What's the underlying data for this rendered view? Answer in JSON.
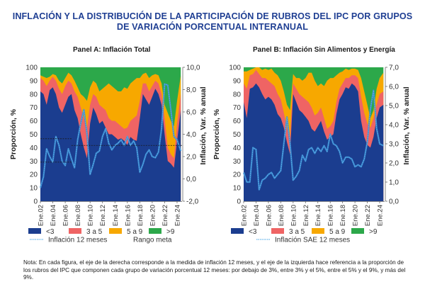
{
  "title_line1": "INFLACIÓN Y LA DISTRIBUCIÓN DE LA PARTICIPACIÓN DE RUBROS DEL IPC POR GRUPOS",
  "title_line2": "DE VARIACIÓN PORCENTUAL INTERANUAL",
  "note": "Nota: En cada figura, el eje de la derecha corresponde a la medida de inflación 12 meses, y el eje de la izquierda hace referencia a la proporción de los rubros del IPC que componen cada grupo de variación porcentual 12 meses: por debajo de 3%, entre 3% y el 5%, entre el 5% y el 9%, y más del 9%.",
  "colors": {
    "lt3": "#1b3d8f",
    "3a5": "#ef6464",
    "5a9": "#f7a800",
    "gt9": "#2ca84a",
    "line": "#3a8fd6",
    "target": "#1a1a1a"
  },
  "chart_data": [
    {
      "type": "area",
      "title": "Panel A:  Inflación Total",
      "ylabel": "Proporción, %",
      "y2label": "Inflación, Var. % anual",
      "ylim": [
        0,
        100
      ],
      "y2lim": [
        -2,
        10
      ],
      "yticks": [
        "0",
        "10",
        "20",
        "30",
        "40",
        "50",
        "60",
        "70",
        "80",
        "90",
        "100"
      ],
      "y2ticks": [
        "-2,0",
        "0,0",
        "2,0",
        "4,0",
        "6,0",
        "8,0",
        "10,0"
      ],
      "xticks": [
        "Ene.02",
        "Ene.04",
        "Ene.06",
        "Ene.08",
        "Ene.10",
        "Ene.12",
        "Ene.14",
        "Ene.16",
        "Ene.18",
        "Ene.20",
        "Ene.22",
        "Ene.24"
      ],
      "xlim": [
        2002.0,
        2024.8
      ],
      "x": [
        2002.0,
        2002.5,
        2003.0,
        2003.5,
        2004.0,
        2004.5,
        2005.0,
        2005.5,
        2006.0,
        2006.5,
        2007.0,
        2007.5,
        2008.0,
        2008.5,
        2009.0,
        2009.5,
        2010.0,
        2010.5,
        2011.0,
        2011.5,
        2012.0,
        2012.5,
        2013.0,
        2013.5,
        2014.0,
        2014.5,
        2015.0,
        2015.5,
        2016.0,
        2016.5,
        2017.0,
        2017.5,
        2018.0,
        2018.5,
        2019.0,
        2019.5,
        2020.0,
        2020.5,
        2021.0,
        2021.5,
        2022.0,
        2022.5,
        2023.0,
        2023.5,
        2024.0,
        2024.6
      ],
      "series": [
        {
          "name": "<3",
          "cumulative_top": [
            82,
            80,
            72,
            83,
            85,
            80,
            70,
            66,
            72,
            78,
            80,
            68,
            62,
            50,
            40,
            32,
            58,
            70,
            65,
            58,
            60,
            55,
            50,
            50,
            48,
            46,
            47,
            45,
            42,
            48,
            46,
            45,
            62,
            80,
            76,
            72,
            78,
            84,
            80,
            72,
            50,
            30,
            28,
            25,
            45,
            68
          ]
        },
        {
          "name": "3 a 5",
          "cumulative_top": [
            92,
            90,
            86,
            90,
            93,
            90,
            84,
            80,
            86,
            90,
            88,
            82,
            78,
            70,
            62,
            55,
            72,
            80,
            78,
            72,
            70,
            68,
            62,
            60,
            60,
            58,
            56,
            54,
            55,
            60,
            62,
            64,
            75,
            88,
            88,
            82,
            86,
            90,
            88,
            80,
            62,
            40,
            35,
            32,
            58,
            80
          ]
        },
        {
          "name": "5 a 9",
          "cumulative_top": [
            94,
            93,
            92,
            93,
            95,
            94,
            90,
            88,
            92,
            96,
            94,
            90,
            85,
            80,
            78,
            75,
            85,
            90,
            88,
            82,
            84,
            86,
            88,
            86,
            84,
            82,
            82,
            85,
            84,
            88,
            90,
            92,
            92,
            95,
            96,
            92,
            94,
            95,
            94,
            88,
            72,
            66,
            60,
            56,
            75,
            94
          ]
        },
        {
          "name": ">9",
          "cumulative_top": [
            100,
            100,
            100,
            100,
            100,
            100,
            100,
            100,
            100,
            100,
            100,
            100,
            100,
            100,
            100,
            100,
            100,
            100,
            100,
            100,
            100,
            100,
            100,
            100,
            100,
            100,
            100,
            100,
            100,
            100,
            100,
            100,
            100,
            100,
            100,
            100,
            100,
            100,
            100,
            100,
            100,
            100,
            100,
            100,
            100,
            100
          ]
        }
      ],
      "line": {
        "name": "Inflación 12 meses",
        "x": [
          2002.0,
          2002.5,
          2003.0,
          2003.5,
          2004.0,
          2004.5,
          2005.0,
          2005.5,
          2006.0,
          2006.5,
          2007.0,
          2007.5,
          2008.0,
          2008.5,
          2009.0,
          2009.5,
          2010.0,
          2010.5,
          2011.0,
          2011.5,
          2012.0,
          2012.5,
          2013.0,
          2013.5,
          2014.0,
          2014.5,
          2015.0,
          2015.5,
          2016.0,
          2016.5,
          2017.0,
          2017.5,
          2018.0,
          2018.5,
          2019.0,
          2019.5,
          2020.0,
          2020.5,
          2021.0,
          2021.5,
          2022.0,
          2022.5,
          2023.0,
          2023.5,
          2024.0,
          2024.6
        ],
        "values": [
          -0.8,
          0.2,
          2.7,
          2.0,
          1.5,
          3.8,
          3.0,
          1.6,
          1.2,
          2.7,
          1.8,
          1.0,
          3.5,
          5.0,
          6.2,
          4.0,
          0.4,
          1.3,
          2.3,
          2.5,
          3.8,
          4.5,
          3.2,
          2.6,
          3.0,
          3.2,
          3.5,
          3.0,
          3.8,
          3.0,
          3.4,
          2.8,
          0.6,
          1.3,
          2.2,
          2.6,
          2.0,
          1.9,
          2.4,
          4.5,
          8.5,
          8.4,
          6.2,
          3.8,
          3.5,
          2.5
        ]
      },
      "target_range": [
        {
          "from": 2002.0,
          "to": 2007.0,
          "lower": 1.5,
          "upper": 3.6
        },
        {
          "from": 2007.0,
          "to": 2024.8,
          "value": 3.0
        }
      ],
      "legend": [
        {
          "label": "<3",
          "type": "box"
        },
        {
          "label": "3 a 5",
          "type": "box"
        },
        {
          "label": "5 a 9",
          "type": "box"
        },
        {
          "label": ">9",
          "type": "box"
        },
        {
          "label": "Inflación 12 meses",
          "type": "line"
        },
        {
          "label": "Rango meta",
          "type": "dash"
        }
      ]
    },
    {
      "type": "area",
      "title": "Panel B:  Inflación Sin Alimentos y Energía",
      "ylabel": "Proporción, %",
      "y2label": "Inflación, Var. % anual",
      "ylim": [
        0,
        100
      ],
      "y2lim": [
        0,
        7
      ],
      "yticks": [
        "0",
        "10",
        "20",
        "30",
        "40",
        "50",
        "60",
        "70",
        "80",
        "90",
        "100"
      ],
      "y2ticks": [
        "0,0",
        "1,0",
        "2,0",
        "3,0",
        "4,0",
        "5,0",
        "6,0",
        "7,0"
      ],
      "xticks": [
        "Ene.02",
        "Ene.04",
        "Ene.06",
        "Ene.08",
        "Ene.10",
        "Ene.12",
        "Ene.14",
        "Ene.16",
        "Ene.18",
        "Ene.20",
        "Ene.22",
        "Ene.24"
      ],
      "xlim": [
        2002.0,
        2024.8
      ],
      "x": [
        2002.0,
        2002.5,
        2003.0,
        2003.5,
        2004.0,
        2004.5,
        2005.0,
        2005.5,
        2006.0,
        2006.5,
        2007.0,
        2007.5,
        2008.0,
        2008.5,
        2009.0,
        2009.5,
        2010.0,
        2010.5,
        2011.0,
        2011.5,
        2012.0,
        2012.5,
        2013.0,
        2013.5,
        2014.0,
        2014.5,
        2015.0,
        2015.5,
        2016.0,
        2016.5,
        2017.0,
        2017.5,
        2018.0,
        2018.5,
        2019.0,
        2019.5,
        2020.0,
        2020.5,
        2021.0,
        2021.5,
        2022.0,
        2022.5,
        2023.0,
        2023.5,
        2024.0,
        2024.6
      ],
      "series": [
        {
          "name": "<3",
          "cumulative_top": [
            74,
            62,
            84,
            85,
            88,
            85,
            80,
            76,
            78,
            76,
            72,
            65,
            62,
            55,
            44,
            35,
            80,
            74,
            68,
            66,
            63,
            60,
            54,
            52,
            56,
            60,
            52,
            46,
            48,
            50,
            65,
            76,
            80,
            85,
            84,
            88,
            86,
            82,
            60,
            48,
            42,
            40,
            48,
            62,
            70,
            72
          ]
        },
        {
          "name": "3 a 5",
          "cumulative_top": [
            88,
            84,
            94,
            95,
            98,
            95,
            92,
            92,
            90,
            88,
            86,
            80,
            76,
            66,
            55,
            48,
            88,
            84,
            80,
            78,
            76,
            74,
            70,
            64,
            66,
            70,
            62,
            54,
            56,
            60,
            74,
            84,
            88,
            92,
            92,
            94,
            94,
            92,
            78,
            66,
            58,
            55,
            62,
            72,
            80,
            82
          ]
        },
        {
          "name": "5 a 9",
          "cumulative_top": [
            97,
            97,
            98,
            99,
            100,
            100,
            98,
            99,
            98,
            99,
            96,
            94,
            90,
            82,
            72,
            68,
            95,
            92,
            92,
            90,
            92,
            96,
            96,
            90,
            86,
            88,
            86,
            90,
            92,
            92,
            94,
            96,
            97,
            99,
            98,
            99,
            99,
            98,
            92,
            82,
            72,
            62,
            68,
            84,
            92,
            96
          ]
        },
        {
          "name": ">9",
          "cumulative_top": [
            100,
            100,
            100,
            100,
            100,
            100,
            100,
            100,
            100,
            100,
            100,
            100,
            100,
            100,
            100,
            100,
            100,
            100,
            100,
            100,
            100,
            100,
            100,
            100,
            100,
            100,
            100,
            100,
            100,
            100,
            100,
            100,
            100,
            100,
            100,
            100,
            100,
            100,
            100,
            100,
            100,
            100,
            100,
            100,
            100,
            100
          ]
        }
      ],
      "line": {
        "name": "Inflación SAE 12 meses",
        "x": [
          2002.0,
          2002.5,
          2003.0,
          2003.5,
          2004.0,
          2004.5,
          2005.0,
          2005.5,
          2006.0,
          2006.5,
          2007.0,
          2007.5,
          2008.0,
          2008.5,
          2009.0,
          2009.5,
          2010.0,
          2010.5,
          2011.0,
          2011.5,
          2012.0,
          2012.5,
          2013.0,
          2013.5,
          2014.0,
          2014.5,
          2015.0,
          2015.5,
          2016.0,
          2016.5,
          2017.0,
          2017.5,
          2018.0,
          2018.5,
          2019.0,
          2019.5,
          2020.0,
          2020.5,
          2021.0,
          2021.5,
          2022.0,
          2022.5,
          2023.0,
          2023.5,
          2024.0,
          2024.6
        ],
        "values": [
          1.5,
          1.0,
          1.0,
          2.8,
          2.7,
          0.6,
          1.1,
          1.2,
          1.4,
          1.5,
          1.2,
          1.4,
          1.6,
          3.0,
          4.4,
          3.0,
          1.1,
          1.3,
          1.6,
          2.4,
          2.1,
          2.7,
          2.8,
          2.5,
          2.8,
          2.6,
          2.9,
          2.6,
          3.5,
          3.0,
          2.9,
          2.6,
          2.0,
          2.3,
          2.3,
          2.2,
          1.8,
          1.9,
          1.8,
          2.2,
          3.1,
          4.8,
          5.8,
          3.8,
          3.0,
          2.9
        ]
      },
      "legend": [
        {
          "label": "<3",
          "type": "box"
        },
        {
          "label": "3 a 5",
          "type": "box"
        },
        {
          "label": "5 a 9",
          "type": "box"
        },
        {
          "label": ">9",
          "type": "box"
        },
        {
          "label": "Inflación SAE 12 meses",
          "type": "line"
        }
      ]
    }
  ]
}
